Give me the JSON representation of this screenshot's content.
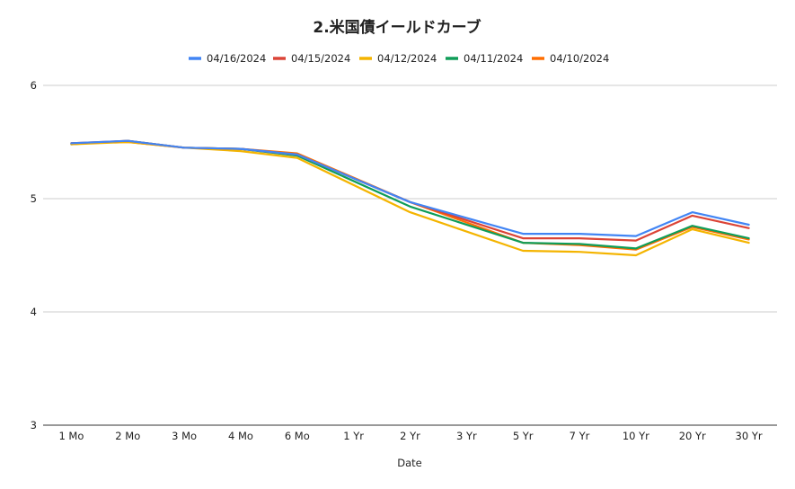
{
  "chart_data": {
    "type": "line",
    "title": "2.米国債イールドカーブ",
    "xlabel": "Date",
    "ylabel": "",
    "ylim": [
      3,
      6
    ],
    "yticks": [
      "3",
      "4",
      "5",
      "6"
    ],
    "grid": true,
    "legend_position": "top",
    "categories": [
      "1 Mo",
      "2 Mo",
      "3 Mo",
      "4 Mo",
      "6 Mo",
      "1 Yr",
      "2 Yr",
      "3 Yr",
      "5 Yr",
      "7 Yr",
      "10 Yr",
      "20 Yr",
      "30 Yr"
    ],
    "series": [
      {
        "name": "04/16/2024",
        "color": "#4285f4",
        "values": [
          5.49,
          5.51,
          5.45,
          5.44,
          5.39,
          null,
          4.97,
          4.83,
          4.69,
          4.69,
          4.67,
          4.88,
          4.77
        ]
      },
      {
        "name": "04/15/2024",
        "color": "#db4437",
        "values": [
          5.49,
          5.51,
          5.45,
          5.44,
          5.39,
          null,
          4.97,
          null,
          4.65,
          4.65,
          4.63,
          4.85,
          4.74
        ]
      },
      {
        "name": "04/12/2024",
        "color": "#f4b400",
        "values": [
          5.48,
          5.5,
          5.45,
          5.42,
          5.36,
          null,
          4.88,
          null,
          4.54,
          4.53,
          4.5,
          4.73,
          4.61
        ]
      },
      {
        "name": "04/11/2024",
        "color": "#0f9d58",
        "values": [
          5.48,
          5.51,
          5.45,
          5.44,
          5.38,
          null,
          4.93,
          null,
          4.61,
          4.6,
          4.56,
          4.76,
          4.65
        ]
      },
      {
        "name": "04/10/2024",
        "color": "#ff6d01",
        "values": [
          5.49,
          5.5,
          5.45,
          5.44,
          5.4,
          null,
          4.97,
          null,
          4.61,
          4.59,
          4.55,
          4.75,
          4.64
        ]
      }
    ]
  }
}
